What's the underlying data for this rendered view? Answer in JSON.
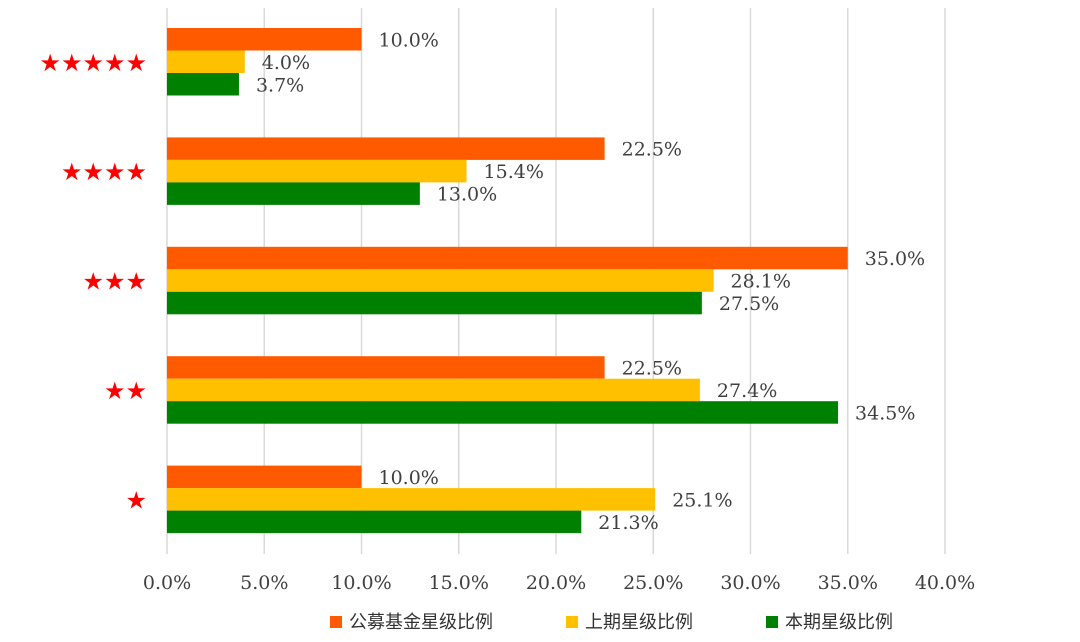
{
  "chart_data": {
    "type": "bar",
    "orientation": "horizontal",
    "categories": [
      "★★★★★",
      "★★★★",
      "★★★",
      "★★",
      "★"
    ],
    "series": [
      {
        "name": "公募基金星级比例",
        "values": [
          10.0,
          22.5,
          35.0,
          22.5,
          10.0
        ],
        "data_labels": [
          "10.0%",
          "22.5%",
          "35.0%",
          "22.5%",
          "10.0%"
        ],
        "color": "#ff5a00"
      },
      {
        "name": "上期星级比例",
        "values": [
          4.0,
          15.4,
          28.1,
          27.4,
          25.1
        ],
        "data_labels": [
          "4.0%",
          "15.4%",
          "28.1%",
          "27.4%",
          "25.1%"
        ],
        "color": "#ffc000"
      },
      {
        "name": "本期星级比例",
        "values": [
          3.7,
          13.0,
          27.5,
          34.5,
          21.3
        ],
        "data_labels": [
          "3.7%",
          "13.0%",
          "27.5%",
          "34.5%",
          "21.3%"
        ],
        "color": "#008000"
      }
    ],
    "xlim": [
      0,
      40
    ],
    "x_ticks": [
      "0.0%",
      "5.0%",
      "10.0%",
      "15.0%",
      "20.0%",
      "25.0%",
      "30.0%",
      "35.0%",
      "40.0%"
    ],
    "gridlines": true,
    "legend_position": "bottom",
    "category_label_color": "#ff0000",
    "gridline_color": "#d9d9d9"
  }
}
